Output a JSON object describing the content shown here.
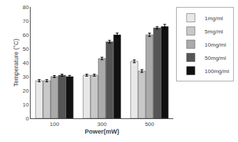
{
  "chart_data": {
    "type": "bar",
    "xlabel": "Power(mW)",
    "ylabel": "Temperature (°C)",
    "categories": [
      "100",
      "300",
      "500"
    ],
    "series": [
      {
        "name": "1mg/ml",
        "color": "#e8e8e8",
        "values": [
          27,
          31,
          41
        ],
        "errors": [
          0.8,
          0.7,
          1.0
        ]
      },
      {
        "name": "5mg/ml",
        "color": "#c8c8c8",
        "values": [
          27,
          31,
          34
        ],
        "errors": [
          0.8,
          0.7,
          1.0
        ]
      },
      {
        "name": "10mg/ml",
        "color": "#aaaaaa",
        "values": [
          30,
          43,
          60
        ],
        "errors": [
          0.7,
          0.9,
          1.2
        ]
      },
      {
        "name": "50mg/ml",
        "color": "#555555",
        "values": [
          31,
          55,
          65
        ],
        "errors": [
          0.7,
          1.0,
          0.9
        ]
      },
      {
        "name": "100mg/ml",
        "color": "#111111",
        "values": [
          30,
          60,
          66
        ],
        "errors": [
          0.8,
          1.3,
          1.5
        ]
      }
    ],
    "ylim": [
      0,
      80
    ],
    "yticks": [
      0,
      10,
      20,
      30,
      40,
      50,
      60,
      70,
      80
    ],
    "grid": false,
    "legend": "right"
  }
}
